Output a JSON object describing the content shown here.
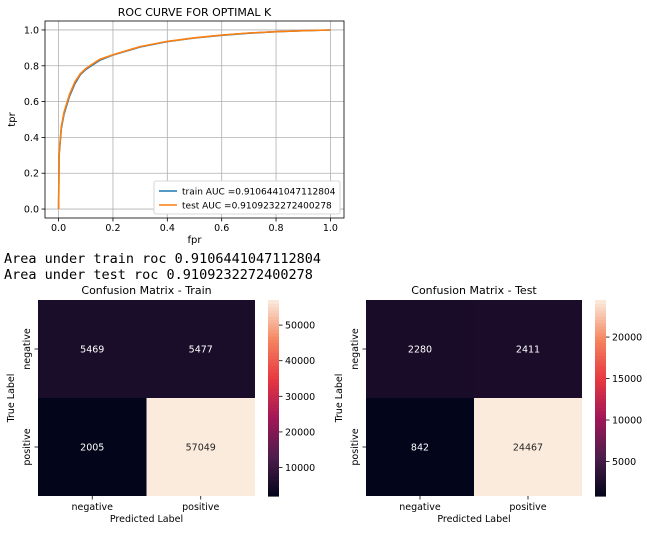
{
  "console": {
    "line1": "Area under train roc 0.9106441047112804",
    "line2": "Area under test roc 0.9109232272400278"
  },
  "chart_data": [
    {
      "type": "line",
      "title": "ROC CURVE FOR OPTIMAL K",
      "xlabel": "fpr",
      "ylabel": "tpr",
      "xlim": [
        -0.05,
        1.05
      ],
      "ylim": [
        -0.05,
        1.05
      ],
      "xticks": [
        0.0,
        0.2,
        0.4,
        0.6,
        0.8,
        1.0
      ],
      "yticks": [
        0.0,
        0.2,
        0.4,
        0.6,
        0.8,
        1.0
      ],
      "grid": true,
      "legend": "lower-right",
      "series": [
        {
          "name": "train AUC =0.9106441047112804",
          "color": "#1f77b4",
          "x": [
            0,
            0.002,
            0.01,
            0.02,
            0.04,
            0.06,
            0.08,
            0.1,
            0.15,
            0.2,
            0.3,
            0.4,
            0.5,
            0.6,
            0.7,
            0.8,
            0.9,
            1.0
          ],
          "y": [
            0,
            0.3,
            0.45,
            0.53,
            0.63,
            0.7,
            0.75,
            0.78,
            0.83,
            0.86,
            0.905,
            0.935,
            0.955,
            0.97,
            0.982,
            0.99,
            0.996,
            1.0
          ]
        },
        {
          "name": "test AUC =0.9109232272400278",
          "color": "#ff7f0e",
          "x": [
            0,
            0.002,
            0.01,
            0.02,
            0.04,
            0.06,
            0.08,
            0.1,
            0.15,
            0.2,
            0.3,
            0.4,
            0.5,
            0.6,
            0.7,
            0.8,
            0.9,
            1.0
          ],
          "y": [
            0,
            0.31,
            0.46,
            0.54,
            0.64,
            0.71,
            0.755,
            0.785,
            0.835,
            0.862,
            0.907,
            0.936,
            0.956,
            0.971,
            0.983,
            0.99,
            0.996,
            1.0
          ]
        }
      ]
    },
    {
      "type": "heatmap",
      "title": "Confusion Matrix - Train",
      "xlabel": "Predicted Label",
      "ylabel": "True Label",
      "x_categories": [
        "negative",
        "positive"
      ],
      "y_categories": [
        "negative",
        "positive"
      ],
      "values": [
        [
          5469,
          5477
        ],
        [
          2005,
          57049
        ]
      ],
      "colorbar_ticks": [
        10000,
        20000,
        30000,
        40000,
        50000
      ]
    },
    {
      "type": "heatmap",
      "title": "Confusion Matrix - Test",
      "xlabel": "Predicted Label",
      "ylabel": "True Label",
      "x_categories": [
        "negative",
        "positive"
      ],
      "y_categories": [
        "negative",
        "positive"
      ],
      "values": [
        [
          2280,
          2411
        ],
        [
          842,
          24467
        ]
      ],
      "colorbar_ticks": [
        5000,
        10000,
        15000,
        20000
      ]
    }
  ]
}
